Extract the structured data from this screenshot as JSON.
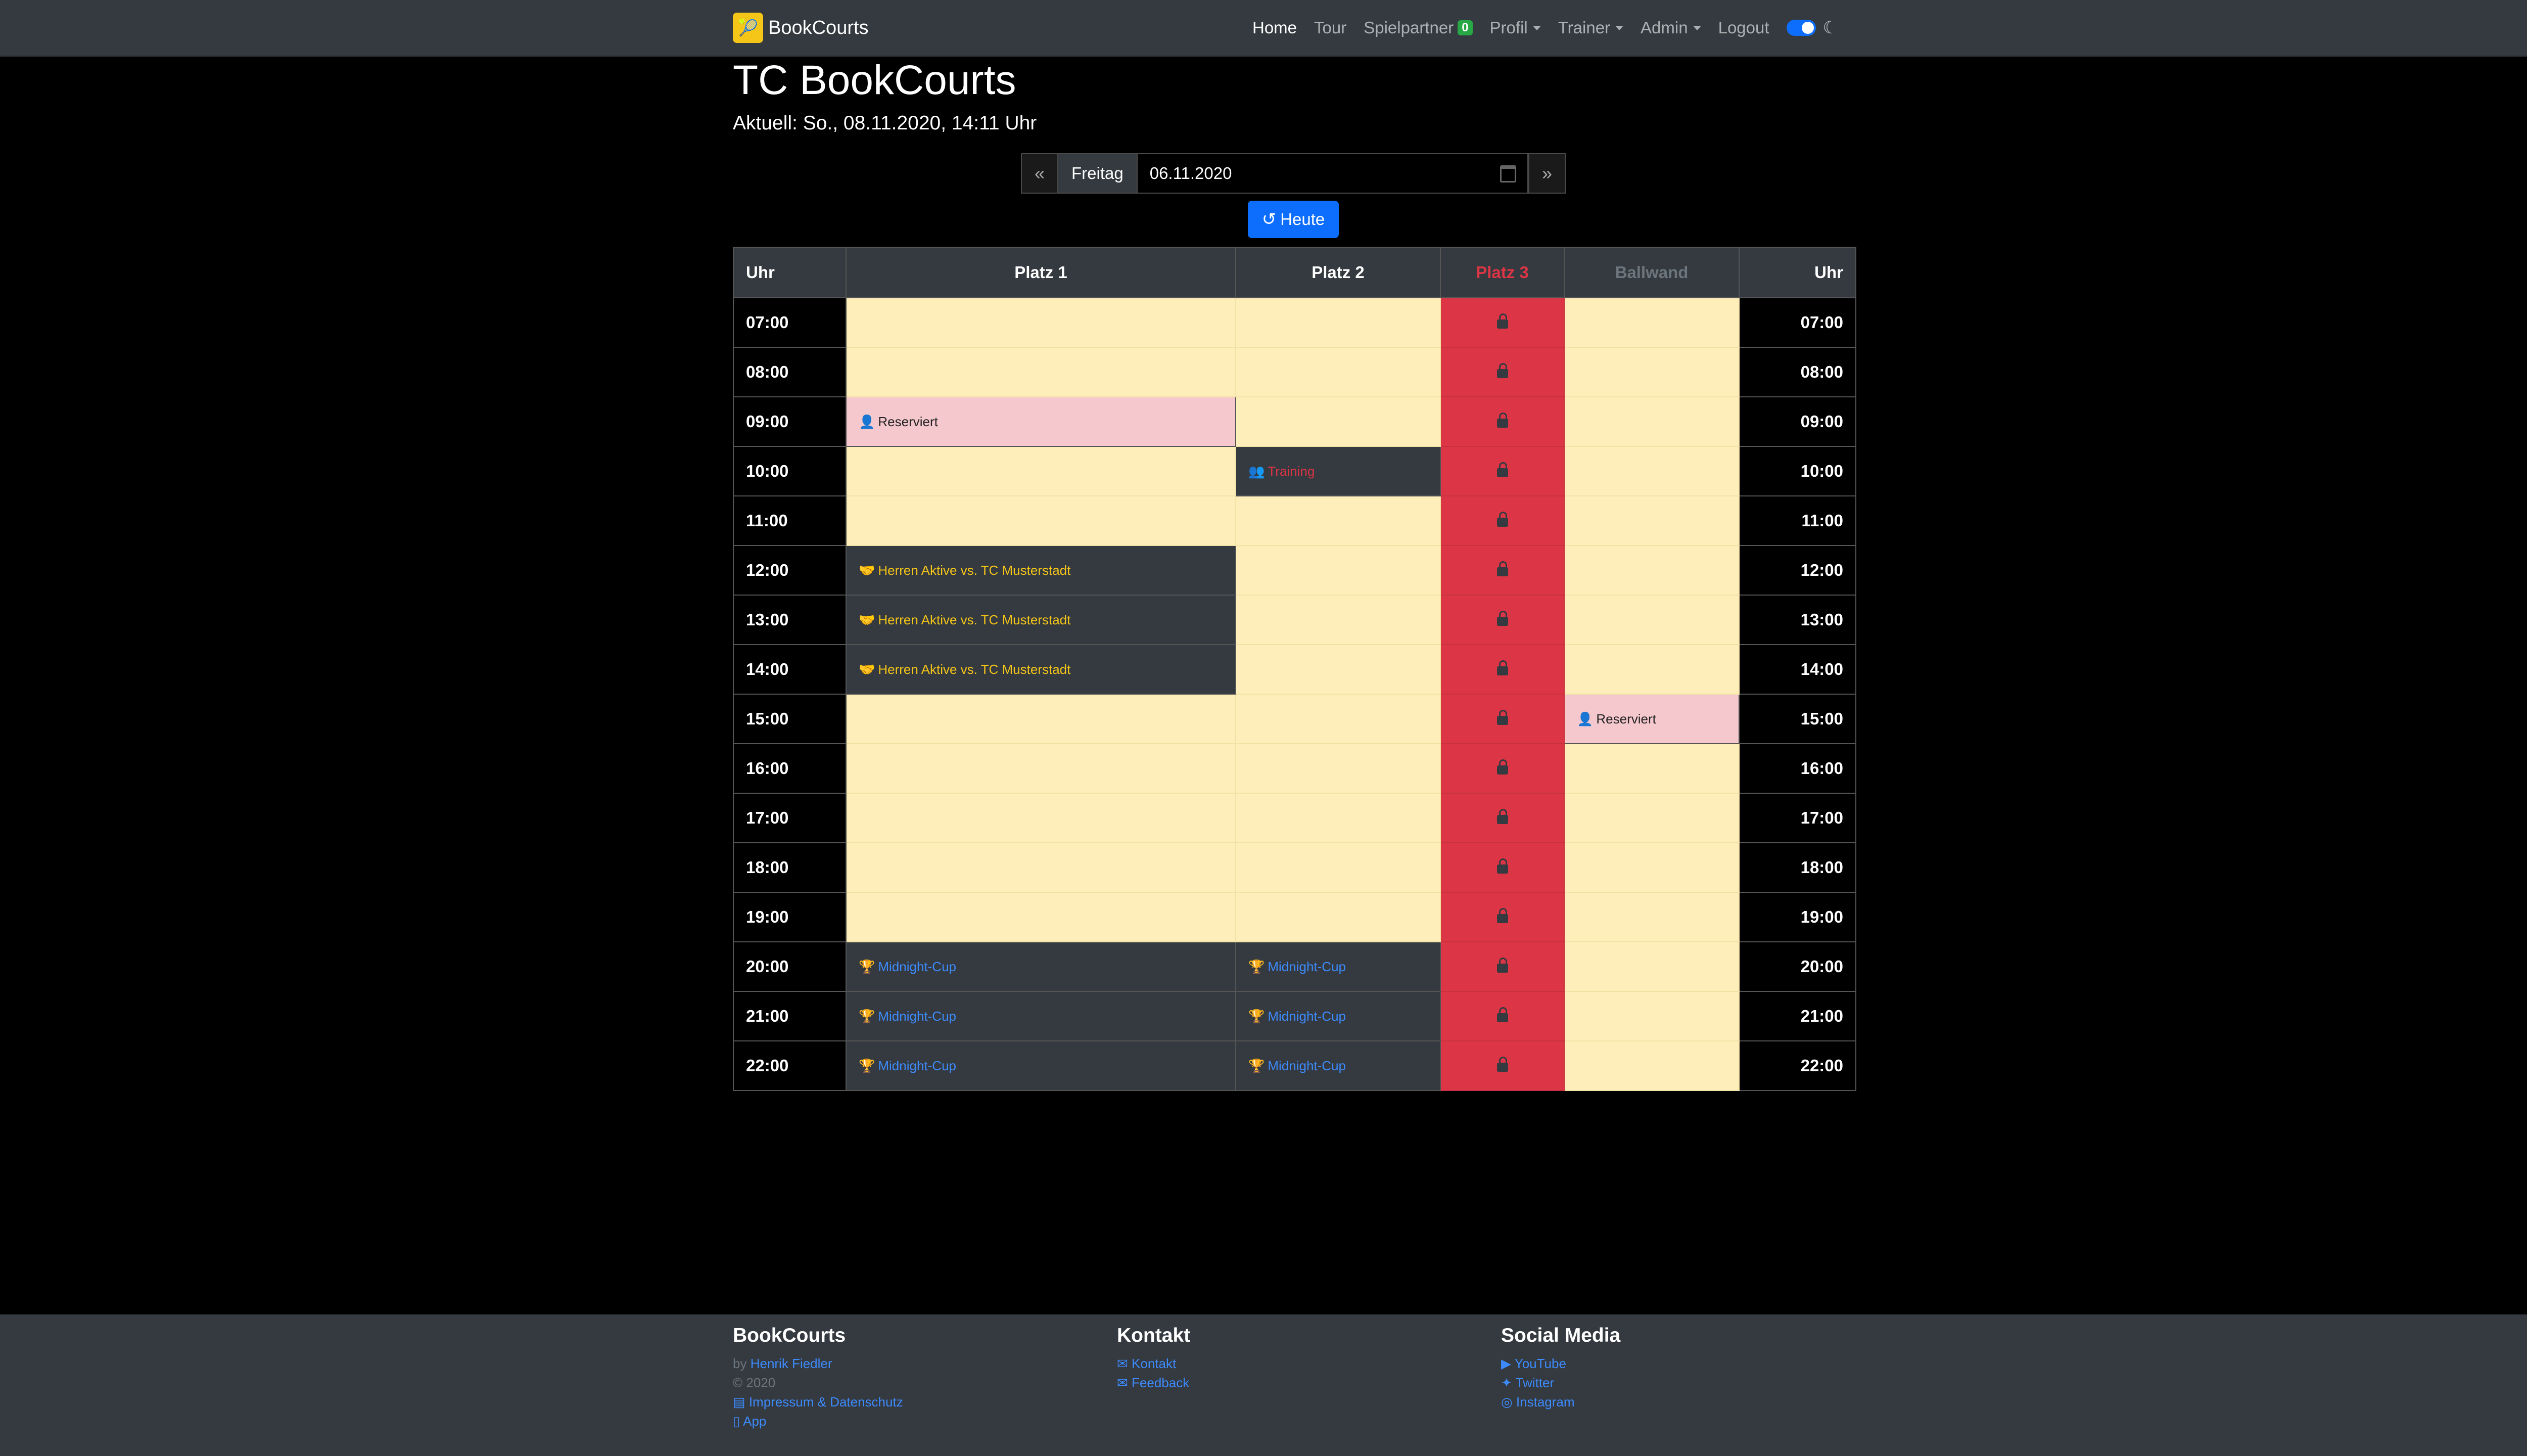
{
  "navbar": {
    "brand": "BookCourts",
    "items": [
      {
        "label": "Home"
      },
      {
        "label": "Tour"
      },
      {
        "label": "Spielpartner",
        "badge": "0"
      },
      {
        "label": "Profil"
      },
      {
        "label": "Trainer"
      },
      {
        "label": "Admin"
      },
      {
        "label": "Logout"
      }
    ]
  },
  "header": {
    "title": "TC BookCourts",
    "current": "Aktuell: So., 08.11.2020, 14:11 Uhr"
  },
  "datepicker": {
    "prev": "«",
    "next": "»",
    "day": "Freitag",
    "date": "06.11.2020"
  },
  "today_button": "Heute",
  "table": {
    "headers": [
      "Uhr",
      "Platz 1",
      "Platz 2",
      "Platz 3",
      "Ballwand",
      "Uhr"
    ],
    "rows": [
      {
        "time": "07:00",
        "p1": "",
        "p2": ""
      },
      {
        "time": "08:00",
        "p1": "",
        "p2": ""
      },
      {
        "time": "09:00",
        "p1": "Reserviert",
        "p2": ""
      },
      {
        "time": "10:00",
        "p1": "",
        "p2": "Training"
      },
      {
        "time": "11:00",
        "p1": "",
        "p2": ""
      },
      {
        "time": "12:00",
        "p1": "Herren Aktive vs. TC Musterstadt",
        "p2": ""
      },
      {
        "time": "13:00",
        "p1": "Herren Aktive vs. TC Musterstadt",
        "p2": ""
      },
      {
        "time": "14:00",
        "p1": "Herren Aktive vs. TC Musterstadt",
        "p2": ""
      },
      {
        "time": "15:00",
        "p1": "",
        "p2": "",
        "ballwand": "Reserviert"
      },
      {
        "time": "16:00",
        "p1": "",
        "p2": ""
      },
      {
        "time": "17:00",
        "p1": "",
        "p2": ""
      },
      {
        "time": "18:00",
        "p1": "",
        "p2": ""
      },
      {
        "time": "19:00",
        "p1": "",
        "p2": ""
      },
      {
        "time": "20:00",
        "p1": "Midnight-Cup",
        "p2": "Midnight-Cup"
      },
      {
        "time": "21:00",
        "p1": "Midnight-Cup",
        "p2": "Midnight-Cup"
      },
      {
        "time": "22:00",
        "p1": "Midnight-Cup",
        "p2": "Midnight-Cup"
      }
    ]
  },
  "footer": {
    "col1": {
      "title": "BookCourts",
      "by": "by",
      "author": "Henrik Fiedler",
      "year": "© 2020",
      "imprint": "Impressum & Datenschutz",
      "app": "App"
    },
    "col2": {
      "title": "Kontakt",
      "links": [
        "Kontakt",
        "Feedback"
      ]
    },
    "col3": {
      "title": "Social Media",
      "links": [
        "YouTube",
        "Twitter",
        "Instagram"
      ]
    }
  },
  "colors": {
    "free": "#fdeeba",
    "locked": "#dc3545",
    "reserved": "#f5c8cd",
    "booked": "#343a40",
    "accent": "#0d6efd"
  }
}
